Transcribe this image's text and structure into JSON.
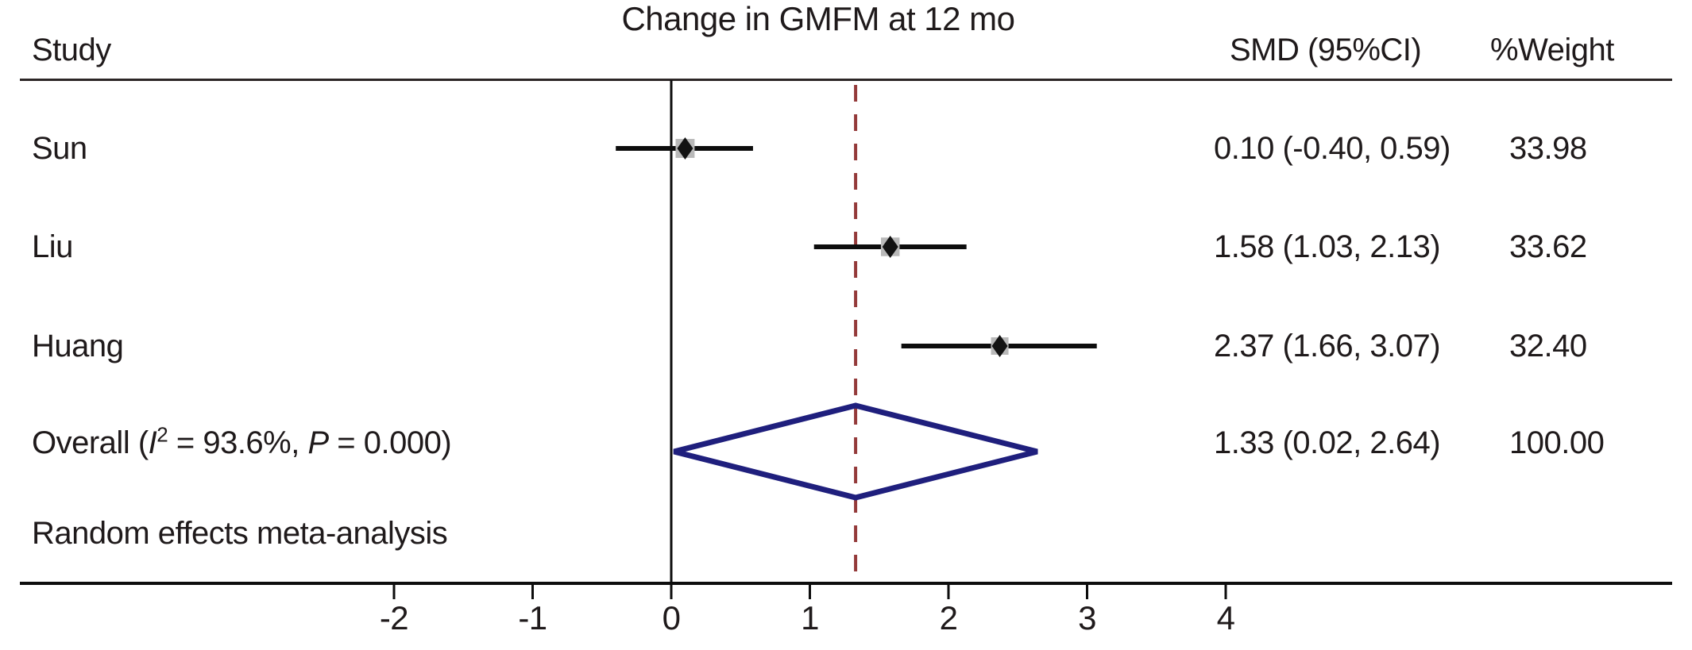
{
  "chart_data": {
    "type": "forest",
    "title": "Change in GMFM at 12 mo",
    "columns": {
      "study": "Study",
      "smd": "SMD (95%CI)",
      "weight": "%Weight"
    },
    "studies": [
      {
        "label": "Sun",
        "smd": 0.1,
        "ci_low": -0.4,
        "ci_high": 0.59,
        "smd_text": "0.10 (-0.40, 0.59)",
        "weight": 33.98,
        "weight_text": "33.98"
      },
      {
        "label": "Liu",
        "smd": 1.58,
        "ci_low": 1.03,
        "ci_high": 2.13,
        "smd_text": "1.58 (1.03, 2.13)",
        "weight": 33.62,
        "weight_text": "33.62"
      },
      {
        "label": "Huang",
        "smd": 2.37,
        "ci_low": 1.66,
        "ci_high": 3.07,
        "smd_text": "2.37 (1.66, 3.07)",
        "weight": 32.4,
        "weight_text": "32.40"
      }
    ],
    "overall": {
      "label_parts": {
        "prefix": "Overall (",
        "stat1_symbol": "I",
        "stat1_sup": "2",
        "middle": " = 93.6%, ",
        "stat2_symbol": "P",
        "suffix": " = 0.000)"
      },
      "smd": 1.33,
      "ci_low": 0.02,
      "ci_high": 2.64,
      "smd_text": "1.33 (0.02, 2.64)",
      "weight": 100.0,
      "weight_text": "100.00"
    },
    "footer": "Random effects meta-analysis",
    "axis": {
      "ticks": [
        -2,
        -1,
        0,
        1,
        2,
        3,
        4
      ],
      "zero_line_at": 0,
      "dashed_line_at": 1.33,
      "grid": false
    },
    "legend": null,
    "colors": {
      "text": "#1f1a1b",
      "line": "#0d0d0d",
      "dashed_line": "#943a3a",
      "diamond_outline": "#1f1f7d",
      "diamond_fill": "#ffffff",
      "weight_box": "#b9b9b9",
      "marker": "#121212",
      "background": "#ffffff"
    }
  }
}
